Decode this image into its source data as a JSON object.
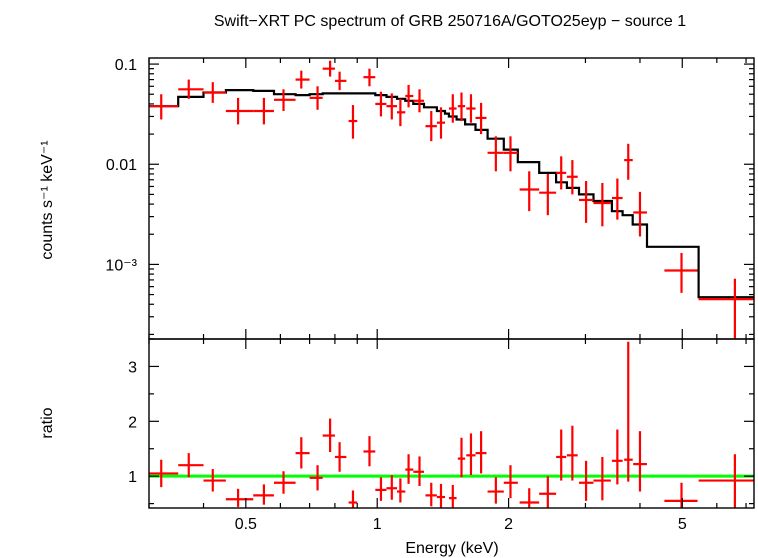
{
  "chart_data": [
    {
      "type": "scatter",
      "title": "Swift−XRT PC spectrum of GRB 250716A/GOTO25eyp − source 1",
      "ylabel": "counts s⁻¹ keV⁻¹",
      "xlabel": "",
      "x_scale": "log",
      "y_scale": "log",
      "xlim": [
        0.3,
        7.3
      ],
      "ylim": [
        0.00018,
        0.115
      ],
      "y_ticks": [
        {
          "value": 0.1,
          "label": "0.1"
        },
        {
          "value": 0.01,
          "label": "0.01"
        },
        {
          "value": 0.001,
          "label": "10⁻³"
        }
      ],
      "series": [
        {
          "kind": "data_points",
          "color": "#ff0000",
          "points": [
            {
              "x": 0.32,
              "xlo": 0.3,
              "xhi": 0.35,
              "y": 0.038,
              "ylo": 0.028,
              "yhi": 0.05
            },
            {
              "x": 0.37,
              "xlo": 0.35,
              "xhi": 0.4,
              "y": 0.056,
              "ylo": 0.045,
              "yhi": 0.07
            },
            {
              "x": 0.42,
              "xlo": 0.4,
              "xhi": 0.45,
              "y": 0.052,
              "ylo": 0.041,
              "yhi": 0.066
            },
            {
              "x": 0.48,
              "xlo": 0.45,
              "xhi": 0.52,
              "y": 0.034,
              "ylo": 0.025,
              "yhi": 0.046
            },
            {
              "x": 0.55,
              "xlo": 0.52,
              "xhi": 0.58,
              "y": 0.034,
              "ylo": 0.025,
              "yhi": 0.046
            },
            {
              "x": 0.61,
              "xlo": 0.58,
              "xhi": 0.65,
              "y": 0.044,
              "ylo": 0.034,
              "yhi": 0.056
            },
            {
              "x": 0.67,
              "xlo": 0.65,
              "xhi": 0.7,
              "y": 0.07,
              "ylo": 0.057,
              "yhi": 0.086
            },
            {
              "x": 0.73,
              "xlo": 0.7,
              "xhi": 0.75,
              "y": 0.046,
              "ylo": 0.035,
              "yhi": 0.06
            },
            {
              "x": 0.78,
              "xlo": 0.75,
              "xhi": 0.8,
              "y": 0.09,
              "ylo": 0.075,
              "yhi": 0.108
            },
            {
              "x": 0.82,
              "xlo": 0.8,
              "xhi": 0.85,
              "y": 0.068,
              "ylo": 0.055,
              "yhi": 0.084
            },
            {
              "x": 0.88,
              "xlo": 0.86,
              "xhi": 0.9,
              "y": 0.027,
              "ylo": 0.018,
              "yhi": 0.039
            },
            {
              "x": 0.96,
              "xlo": 0.93,
              "xhi": 0.99,
              "y": 0.074,
              "ylo": 0.06,
              "yhi": 0.09
            },
            {
              "x": 1.02,
              "xlo": 0.99,
              "xhi": 1.05,
              "y": 0.04,
              "ylo": 0.03,
              "yhi": 0.053
            },
            {
              "x": 1.08,
              "xlo": 1.05,
              "xhi": 1.11,
              "y": 0.038,
              "ylo": 0.028,
              "yhi": 0.051
            },
            {
              "x": 1.13,
              "xlo": 1.11,
              "xhi": 1.16,
              "y": 0.033,
              "ylo": 0.024,
              "yhi": 0.045
            },
            {
              "x": 1.18,
              "xlo": 1.16,
              "xhi": 1.21,
              "y": 0.048,
              "ylo": 0.037,
              "yhi": 0.062
            },
            {
              "x": 1.25,
              "xlo": 1.21,
              "xhi": 1.28,
              "y": 0.043,
              "ylo": 0.033,
              "yhi": 0.056
            },
            {
              "x": 1.33,
              "xlo": 1.29,
              "xhi": 1.37,
              "y": 0.024,
              "ylo": 0.017,
              "yhi": 0.034
            },
            {
              "x": 1.4,
              "xlo": 1.37,
              "xhi": 1.43,
              "y": 0.026,
              "ylo": 0.018,
              "yhi": 0.037
            },
            {
              "x": 1.49,
              "xlo": 1.46,
              "xhi": 1.52,
              "y": 0.036,
              "ylo": 0.026,
              "yhi": 0.05
            },
            {
              "x": 1.56,
              "xlo": 1.53,
              "xhi": 1.59,
              "y": 0.038,
              "ylo": 0.027,
              "yhi": 0.052
            },
            {
              "x": 1.64,
              "xlo": 1.6,
              "xhi": 1.68,
              "y": 0.036,
              "ylo": 0.026,
              "yhi": 0.05
            },
            {
              "x": 1.73,
              "xlo": 1.68,
              "xhi": 1.78,
              "y": 0.029,
              "ylo": 0.02,
              "yhi": 0.041
            },
            {
              "x": 1.87,
              "xlo": 1.79,
              "xhi": 1.95,
              "y": 0.013,
              "ylo": 0.0085,
              "yhi": 0.019
            },
            {
              "x": 2.02,
              "xlo": 1.95,
              "xhi": 2.1,
              "y": 0.013,
              "ylo": 0.0085,
              "yhi": 0.019
            },
            {
              "x": 2.23,
              "xlo": 2.12,
              "xhi": 2.35,
              "y": 0.0056,
              "ylo": 0.0034,
              "yhi": 0.0085
            },
            {
              "x": 2.46,
              "xlo": 2.35,
              "xhi": 2.57,
              "y": 0.0052,
              "ylo": 0.0031,
              "yhi": 0.008
            },
            {
              "x": 2.64,
              "xlo": 2.57,
              "xhi": 2.71,
              "y": 0.0082,
              "ylo": 0.0056,
              "yhi": 0.012
            },
            {
              "x": 2.8,
              "xlo": 2.72,
              "xhi": 2.88,
              "y": 0.0075,
              "ylo": 0.005,
              "yhi": 0.011
            },
            {
              "x": 3.01,
              "xlo": 2.9,
              "xhi": 3.13,
              "y": 0.0044,
              "ylo": 0.0026,
              "yhi": 0.0068
            },
            {
              "x": 3.28,
              "xlo": 3.13,
              "xhi": 3.43,
              "y": 0.0041,
              "ylo": 0.0024,
              "yhi": 0.0065
            },
            {
              "x": 3.55,
              "xlo": 3.45,
              "xhi": 3.65,
              "y": 0.0046,
              "ylo": 0.0028,
              "yhi": 0.0072
            },
            {
              "x": 3.76,
              "xlo": 3.68,
              "xhi": 3.85,
              "y": 0.011,
              "ylo": 0.007,
              "yhi": 0.016
            },
            {
              "x": 4.0,
              "xlo": 3.86,
              "xhi": 4.15,
              "y": 0.0033,
              "ylo": 0.0019,
              "yhi": 0.0053
            },
            {
              "x": 4.98,
              "xlo": 4.55,
              "xhi": 5.42,
              "y": 0.00087,
              "ylo": 0.00052,
              "yhi": 0.0013
            },
            {
              "x": 6.6,
              "xlo": 5.45,
              "xhi": 7.6,
              "y": 0.00045,
              "ylo": 0.00018,
              "yhi": 0.00072
            }
          ]
        },
        {
          "kind": "model_step",
          "color": "#000000",
          "edges": [
            0.3,
            0.35,
            0.4,
            0.45,
            0.52,
            0.58,
            0.65,
            0.7,
            0.75,
            0.8,
            0.85,
            0.9,
            0.99,
            1.05,
            1.11,
            1.16,
            1.21,
            1.28,
            1.37,
            1.43,
            1.46,
            1.52,
            1.59,
            1.68,
            1.79,
            1.95,
            2.1,
            2.35,
            2.57,
            2.72,
            2.9,
            3.13,
            3.45,
            3.65,
            3.85,
            4.15,
            5.45,
            7.6
          ],
          "values": [
            0.038,
            0.047,
            0.052,
            0.055,
            0.054,
            0.05,
            0.049,
            0.05,
            0.051,
            0.051,
            0.051,
            0.051,
            0.049,
            0.047,
            0.045,
            0.043,
            0.04,
            0.037,
            0.034,
            0.032,
            0.03,
            0.028,
            0.025,
            0.022,
            0.018,
            0.014,
            0.0105,
            0.0082,
            0.0066,
            0.0058,
            0.005,
            0.0043,
            0.0034,
            0.0031,
            0.0025,
            0.0015,
            0.00047
          ]
        }
      ]
    },
    {
      "type": "scatter",
      "title": "",
      "ylabel": "ratio",
      "xlabel": "Energy (keV)",
      "x_scale": "log",
      "y_scale": "linear",
      "xlim": [
        0.3,
        7.3
      ],
      "ylim": [
        0.42,
        3.5
      ],
      "x_ticks": [
        {
          "value": 0.5,
          "label": "0.5"
        },
        {
          "value": 1,
          "label": "1"
        },
        {
          "value": 2,
          "label": "2"
        },
        {
          "value": 5,
          "label": "5"
        }
      ],
      "y_ticks": [
        {
          "value": 1,
          "label": "1"
        },
        {
          "value": 2,
          "label": "2"
        },
        {
          "value": 3,
          "label": "3"
        }
      ],
      "reference_line": {
        "y": 1,
        "color": "#00ff00"
      },
      "series": [
        {
          "kind": "data_points",
          "color": "#ff0000",
          "points": [
            {
              "x": 0.32,
              "xlo": 0.3,
              "xhi": 0.35,
              "y": 1.05,
              "ylo": 0.8,
              "yhi": 1.3
            },
            {
              "x": 0.37,
              "xlo": 0.35,
              "xhi": 0.4,
              "y": 1.2,
              "ylo": 0.98,
              "yhi": 1.42
            },
            {
              "x": 0.42,
              "xlo": 0.4,
              "xhi": 0.45,
              "y": 0.92,
              "ylo": 0.72,
              "yhi": 1.13
            },
            {
              "x": 0.48,
              "xlo": 0.45,
              "xhi": 0.52,
              "y": 0.58,
              "ylo": 0.44,
              "yhi": 0.77
            },
            {
              "x": 0.55,
              "xlo": 0.52,
              "xhi": 0.58,
              "y": 0.65,
              "ylo": 0.48,
              "yhi": 0.85
            },
            {
              "x": 0.61,
              "xlo": 0.58,
              "xhi": 0.65,
              "y": 0.88,
              "ylo": 0.68,
              "yhi": 1.09
            },
            {
              "x": 0.67,
              "xlo": 0.65,
              "xhi": 0.7,
              "y": 1.42,
              "ylo": 1.14,
              "yhi": 1.71
            },
            {
              "x": 0.73,
              "xlo": 0.7,
              "xhi": 0.75,
              "y": 0.97,
              "ylo": 0.74,
              "yhi": 1.2
            },
            {
              "x": 0.78,
              "xlo": 0.75,
              "xhi": 0.8,
              "y": 1.74,
              "ylo": 1.44,
              "yhi": 2.05
            },
            {
              "x": 0.82,
              "xlo": 0.8,
              "xhi": 0.85,
              "y": 1.35,
              "ylo": 1.08,
              "yhi": 1.62
            },
            {
              "x": 0.88,
              "xlo": 0.86,
              "xhi": 0.9,
              "y": 0.52,
              "ylo": 0.35,
              "yhi": 0.74
            },
            {
              "x": 0.96,
              "xlo": 0.93,
              "xhi": 0.99,
              "y": 1.45,
              "ylo": 1.18,
              "yhi": 1.73
            },
            {
              "x": 1.02,
              "xlo": 0.99,
              "xhi": 1.05,
              "y": 0.75,
              "ylo": 0.55,
              "yhi": 0.98
            },
            {
              "x": 1.08,
              "xlo": 1.05,
              "xhi": 1.11,
              "y": 0.78,
              "ylo": 0.57,
              "yhi": 1.02
            },
            {
              "x": 1.13,
              "xlo": 1.11,
              "xhi": 1.16,
              "y": 0.72,
              "ylo": 0.52,
              "yhi": 0.96
            },
            {
              "x": 1.18,
              "xlo": 1.16,
              "xhi": 1.21,
              "y": 1.12,
              "ylo": 0.86,
              "yhi": 1.4
            },
            {
              "x": 1.25,
              "xlo": 1.21,
              "xhi": 1.28,
              "y": 1.08,
              "ylo": 0.82,
              "yhi": 1.36
            },
            {
              "x": 1.33,
              "xlo": 1.29,
              "xhi": 1.37,
              "y": 0.65,
              "ylo": 0.45,
              "yhi": 0.88
            },
            {
              "x": 1.4,
              "xlo": 1.37,
              "xhi": 1.43,
              "y": 0.62,
              "ylo": 0.42,
              "yhi": 0.86
            },
            {
              "x": 1.49,
              "xlo": 1.46,
              "xhi": 1.52,
              "y": 0.6,
              "ylo": 0.43,
              "yhi": 0.84
            },
            {
              "x": 1.56,
              "xlo": 1.53,
              "xhi": 1.59,
              "y": 1.32,
              "ylo": 0.98,
              "yhi": 1.7
            },
            {
              "x": 1.64,
              "xlo": 1.6,
              "xhi": 1.68,
              "y": 1.38,
              "ylo": 1.02,
              "yhi": 1.78
            },
            {
              "x": 1.73,
              "xlo": 1.68,
              "xhi": 1.78,
              "y": 1.42,
              "ylo": 1.05,
              "yhi": 1.82
            },
            {
              "x": 1.87,
              "xlo": 1.79,
              "xhi": 1.95,
              "y": 0.72,
              "ylo": 0.5,
              "yhi": 0.98
            },
            {
              "x": 2.02,
              "xlo": 1.95,
              "xhi": 2.1,
              "y": 0.88,
              "ylo": 0.6,
              "yhi": 1.2
            },
            {
              "x": 2.23,
              "xlo": 2.12,
              "xhi": 2.35,
              "y": 0.52,
              "ylo": 0.32,
              "yhi": 0.78
            },
            {
              "x": 2.46,
              "xlo": 2.35,
              "xhi": 2.57,
              "y": 0.68,
              "ylo": 0.42,
              "yhi": 1.0
            },
            {
              "x": 2.64,
              "xlo": 2.57,
              "xhi": 2.71,
              "y": 1.35,
              "ylo": 0.92,
              "yhi": 1.85
            },
            {
              "x": 2.8,
              "xlo": 2.72,
              "xhi": 2.88,
              "y": 1.38,
              "ylo": 0.92,
              "yhi": 1.92
            },
            {
              "x": 3.01,
              "xlo": 2.9,
              "xhi": 3.13,
              "y": 0.88,
              "ylo": 0.55,
              "yhi": 1.28
            },
            {
              "x": 3.28,
              "xlo": 3.13,
              "xhi": 3.43,
              "y": 0.92,
              "ylo": 0.56,
              "yhi": 1.35
            },
            {
              "x": 3.55,
              "xlo": 3.45,
              "xhi": 3.65,
              "y": 1.28,
              "ylo": 0.85,
              "yhi": 1.85
            },
            {
              "x": 3.76,
              "xlo": 3.68,
              "xhi": 3.85,
              "y": 1.3,
              "ylo": 0.9,
              "yhi": 3.45
            },
            {
              "x": 4.0,
              "xlo": 3.86,
              "xhi": 4.15,
              "y": 1.22,
              "ylo": 0.72,
              "yhi": 1.82
            },
            {
              "x": 4.98,
              "xlo": 4.55,
              "xhi": 5.42,
              "y": 0.55,
              "ylo": 0.42,
              "yhi": 0.88
            },
            {
              "x": 6.6,
              "xlo": 5.45,
              "xhi": 7.6,
              "y": 0.92,
              "ylo": 0.42,
              "yhi": 1.4
            }
          ]
        }
      ]
    }
  ]
}
